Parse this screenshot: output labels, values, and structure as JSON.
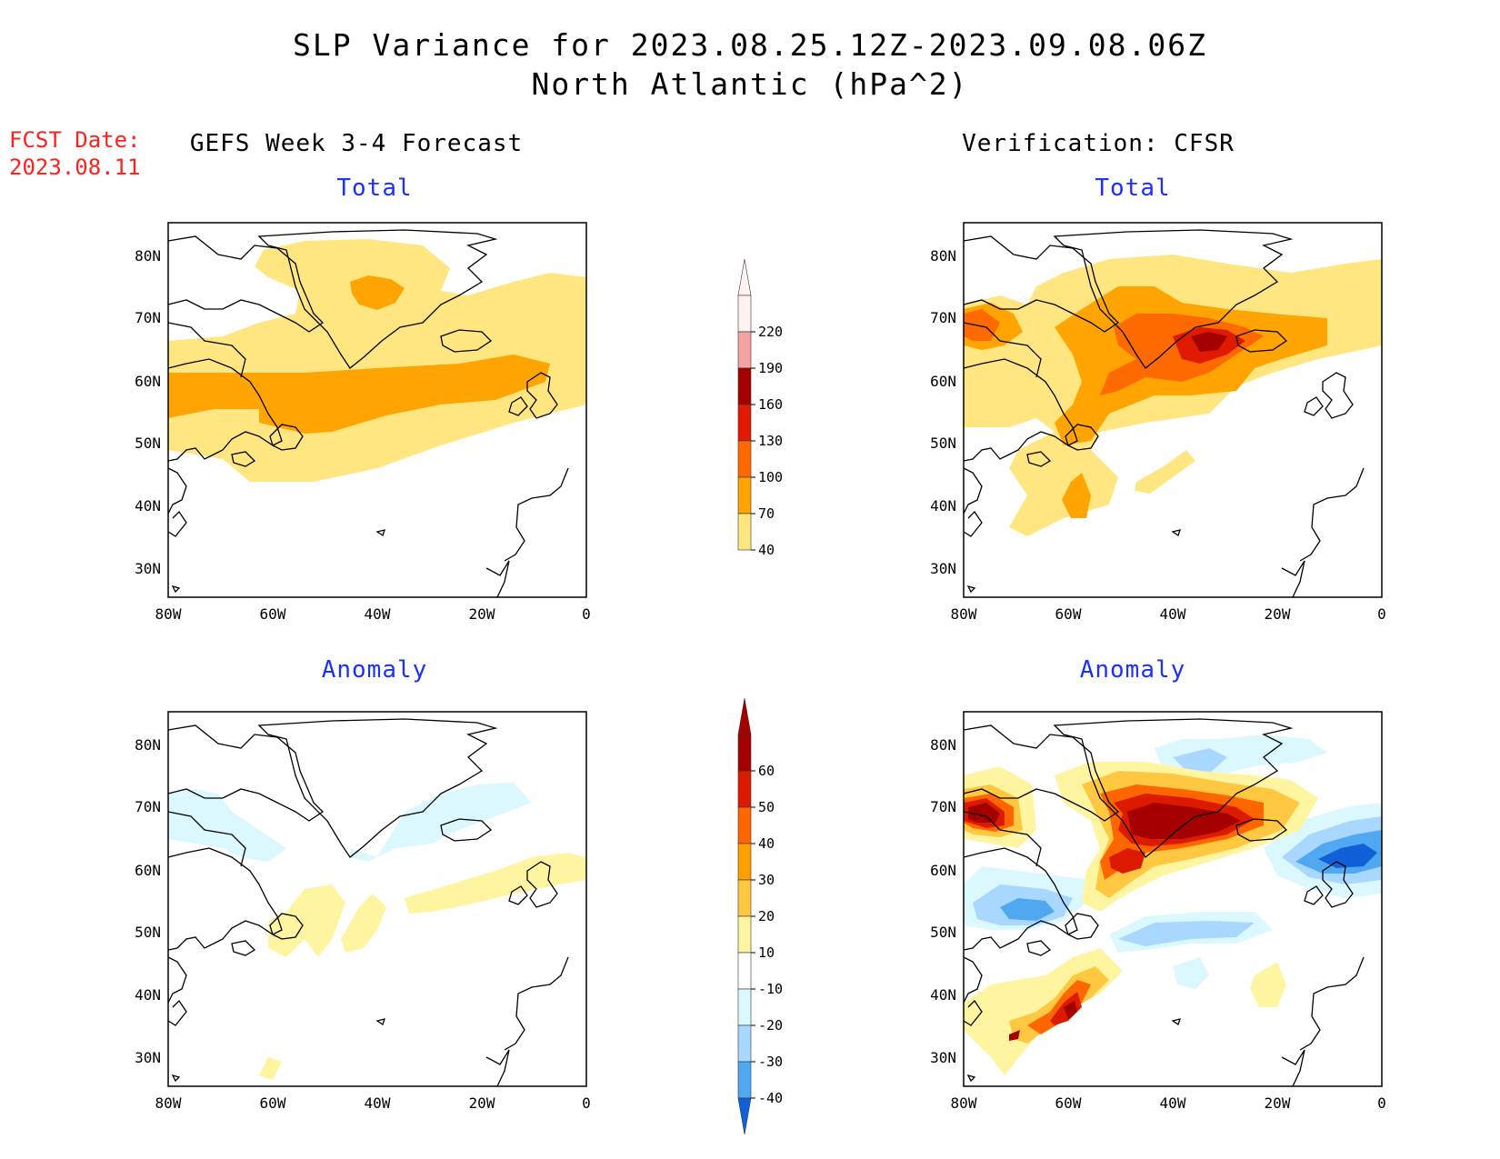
{
  "title": {
    "line1": "SLP Variance for 2023.08.25.12Z-2023.09.08.06Z",
    "line2": "North Atlantic (hPa^2)"
  },
  "fcst": {
    "label": "FCST Date:",
    "date": "2023.08.11"
  },
  "columns": {
    "left": "GEFS Week 3-4 Forecast",
    "right": "Verification: CFSR"
  },
  "panels": {
    "tl": "Total",
    "tr": "Total",
    "bl": "Anomaly",
    "br": "Anomaly"
  },
  "map_axes": {
    "lat_labels": [
      "80N",
      "70N",
      "60N",
      "50N",
      "40N",
      "30N"
    ],
    "lon_labels": [
      "80W",
      "60W",
      "40W",
      "20W",
      "0"
    ]
  },
  "colorbar_total": {
    "levels": [
      "220",
      "190",
      "160",
      "130",
      "100",
      "70",
      "40"
    ],
    "colors": [
      "#fff2f2",
      "#f4a3a3",
      "#a40000",
      "#e01a00",
      "#ff6a00",
      "#ffa400",
      "#ffe680"
    ]
  },
  "colorbar_anom": {
    "levels": [
      "60",
      "50",
      "40",
      "30",
      "20",
      "10",
      "-10",
      "-20",
      "-30",
      "-40"
    ],
    "colors": [
      "#a50000",
      "#dc1a00",
      "#ff6600",
      "#ffa000",
      "#ffc840",
      "#fff4a0",
      "#ffffff",
      "#dcf8ff",
      "#a8d8ff",
      "#50a8f0",
      "#1060d8"
    ]
  }
}
